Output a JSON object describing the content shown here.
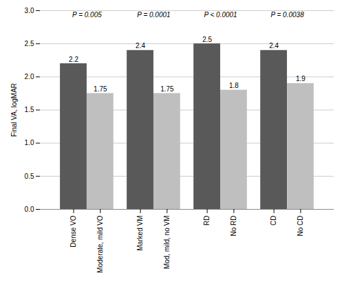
{
  "chart_data": {
    "type": "bar",
    "categories": [
      "Dense VO",
      "Moderate, mild VO",
      "Marked VM",
      "Mod, mild, no VM",
      "RD",
      "No RD",
      "CD",
      "No CD"
    ],
    "values": [
      2.2,
      1.75,
      2.4,
      1.75,
      2.5,
      1.8,
      2.4,
      1.9
    ],
    "colors": [
      "#595959",
      "#bfbfbf",
      "#595959",
      "#bfbfbf",
      "#595959",
      "#bfbfbf",
      "#595959",
      "#bfbfbf"
    ],
    "annotations": [
      "P = 0.005",
      "P = 0.0001",
      "P < 0.0001",
      "P = 0.0038"
    ],
    "ylabel": "Final VA, logMAR",
    "ylim": [
      0.0,
      3.0
    ],
    "yticks": [
      {
        "value": 0,
        "label": "0.0"
      },
      0.5,
      {
        "value": 1,
        "label": "1.0"
      },
      1.5,
      {
        "value": 2,
        "label": "2.0"
      },
      2.5,
      {
        "value": 3,
        "label": "3.0"
      }
    ],
    "grid": true,
    "data_labels": true
  }
}
